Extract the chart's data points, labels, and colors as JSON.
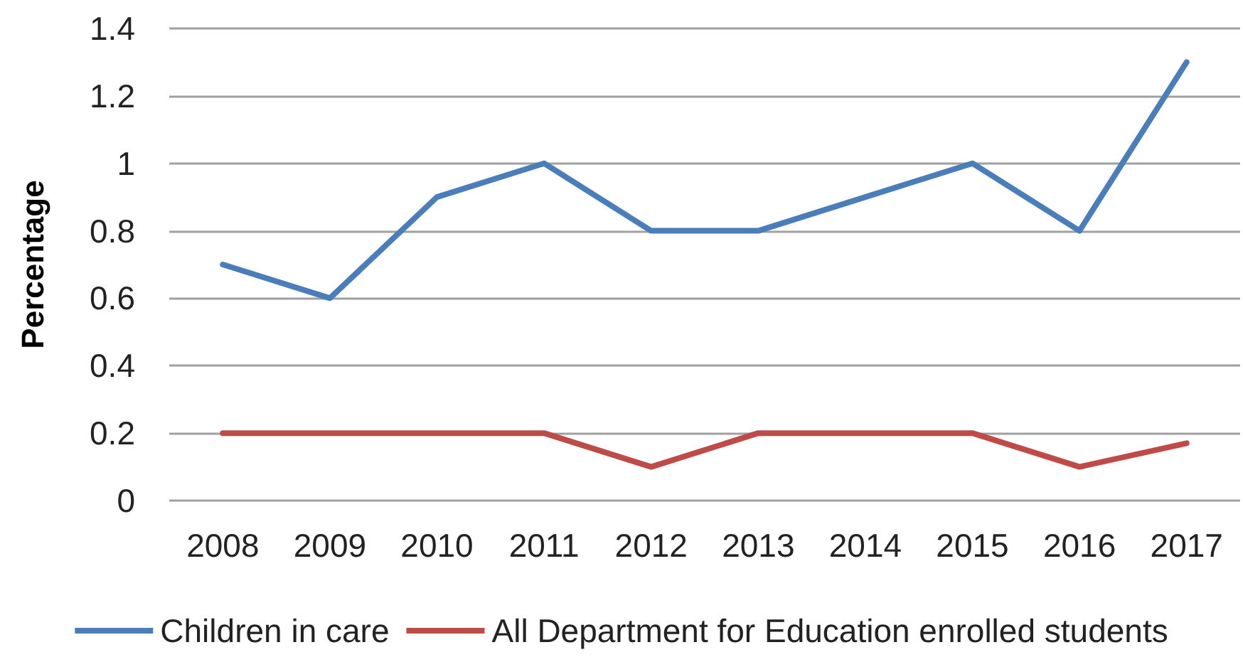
{
  "chart_data": {
    "type": "line",
    "ylabel": "Percentage",
    "categories": [
      "2008",
      "2009",
      "2010",
      "2011",
      "2012",
      "2013",
      "2014",
      "2015",
      "2016",
      "2017"
    ],
    "series": [
      {
        "name": "Children in care",
        "color": "#4a7ebb",
        "values": [
          0.7,
          0.6,
          0.9,
          1.0,
          0.8,
          0.8,
          0.9,
          1.0,
          0.8,
          1.3
        ]
      },
      {
        "name": "All Department for Education enrolled students",
        "color": "#be4b48",
        "values": [
          0.2,
          0.2,
          0.2,
          0.2,
          0.1,
          0.2,
          0.2,
          0.2,
          0.1,
          0.17
        ]
      }
    ],
    "ylim": [
      0,
      1.4
    ],
    "yticks": [
      0,
      0.2,
      0.4,
      0.6,
      0.8,
      1,
      1.2,
      1.4
    ],
    "grid": "y",
    "legend": "bottom",
    "marker": "none",
    "line_style": "solid"
  }
}
